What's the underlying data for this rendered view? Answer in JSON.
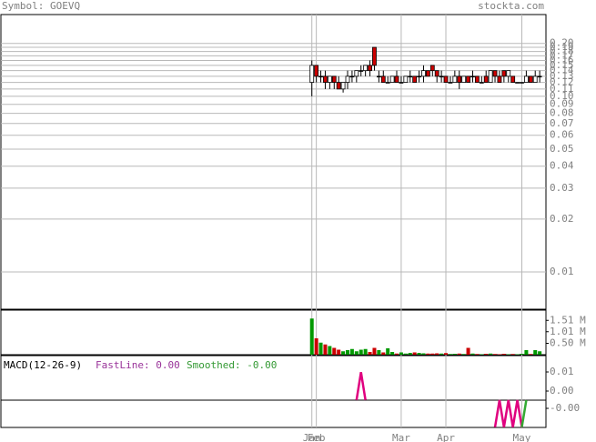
{
  "header": {
    "symbol": "Symbol: GOEVQ",
    "site": "stockta.com"
  },
  "chart_data": [
    {
      "type": "candlestick",
      "categories": [
        "Jan",
        "Feb",
        null,
        null,
        null,
        null,
        null,
        null,
        null,
        null,
        null,
        null,
        null,
        null,
        null,
        null,
        null,
        null,
        null,
        null,
        "Mar",
        null,
        null,
        null,
        null,
        null,
        null,
        null,
        null,
        null,
        "Apr",
        null,
        null,
        null,
        null,
        null,
        null,
        null,
        null,
        null,
        null,
        null,
        null,
        null,
        null,
        null,
        null,
        "May",
        null,
        null,
        null,
        null
      ],
      "xlim": [
        -69.6,
        52.4
      ],
      "open": [
        0.12,
        0.15,
        0.13,
        0.13,
        0.12,
        0.13,
        0.12,
        0.11,
        0.12,
        0.13,
        0.13,
        0.14,
        0.14,
        0.15,
        0.19,
        0.13,
        0.13,
        0.12,
        0.12,
        0.13,
        0.12,
        0.12,
        0.13,
        0.13,
        0.13,
        0.13,
        0.14,
        0.15,
        0.14,
        0.13,
        0.13,
        0.12,
        0.12,
        0.13,
        0.12,
        0.13,
        0.13,
        0.13,
        0.12,
        0.13,
        0.12,
        0.14,
        0.13,
        0.14,
        0.13,
        0.13,
        0.12,
        0.12,
        0.12,
        0.13,
        0.12,
        0.13
      ],
      "high": [
        0.16,
        0.15,
        0.14,
        0.14,
        0.13,
        0.13,
        0.13,
        0.12,
        0.14,
        0.14,
        0.14,
        0.15,
        0.15,
        0.16,
        0.19,
        0.14,
        0.14,
        0.13,
        0.13,
        0.14,
        0.13,
        0.13,
        0.14,
        0.13,
        0.14,
        0.15,
        0.14,
        0.15,
        0.14,
        0.14,
        0.13,
        0.13,
        0.14,
        0.14,
        0.13,
        0.13,
        0.14,
        0.13,
        0.13,
        0.14,
        0.14,
        0.14,
        0.14,
        0.14,
        0.14,
        0.13,
        0.12,
        0.12,
        0.14,
        0.13,
        0.14,
        0.14
      ],
      "low": [
        0.1,
        0.12,
        0.12,
        0.11,
        0.11,
        0.11,
        0.11,
        0.105,
        0.11,
        0.12,
        0.12,
        0.13,
        0.13,
        0.13,
        0.14,
        0.12,
        0.12,
        0.12,
        0.12,
        0.12,
        0.12,
        0.12,
        0.12,
        0.12,
        0.12,
        0.12,
        0.13,
        0.13,
        0.12,
        0.12,
        0.12,
        0.12,
        0.12,
        0.11,
        0.12,
        0.12,
        0.12,
        0.12,
        0.12,
        0.12,
        0.12,
        0.12,
        0.12,
        0.12,
        0.12,
        0.12,
        0.12,
        0.12,
        0.12,
        0.12,
        0.12,
        0.12
      ],
      "close": [
        0.15,
        0.13,
        0.13,
        0.12,
        0.13,
        0.12,
        0.11,
        0.12,
        0.13,
        0.13,
        0.14,
        0.14,
        0.15,
        0.14,
        0.15,
        0.13,
        0.12,
        0.12,
        0.13,
        0.12,
        0.12,
        0.13,
        0.13,
        0.12,
        0.13,
        0.14,
        0.13,
        0.14,
        0.13,
        0.13,
        0.12,
        0.12,
        0.13,
        0.12,
        0.13,
        0.12,
        0.13,
        0.12,
        0.12,
        0.12,
        0.14,
        0.13,
        0.12,
        0.13,
        0.14,
        0.12,
        0.12,
        0.12,
        0.13,
        0.12,
        0.13,
        0.13
      ],
      "up_color": "#ffffff",
      "down_color": "#cc0000",
      "log_scale": true,
      "grid": true,
      "ylim": [
        0.00613,
        0.292
      ],
      "yticks": [
        0.01,
        0.02,
        0.03,
        0.04,
        0.05,
        0.06,
        0.07,
        0.08,
        0.09,
        {
          "value": 0.1,
          "label": "0.10"
        },
        {
          "value": 0.11,
          "label": "0.11"
        },
        {
          "value": 0.12,
          "label": "0.12"
        },
        {
          "value": 0.13,
          "label": "0.13"
        },
        {
          "value": 0.14,
          "label": "0.14"
        },
        {
          "value": 0.15,
          "label": "0.15"
        },
        {
          "value": 0.16,
          "label": "0.16"
        },
        {
          "value": 0.17,
          "label": "0.17"
        },
        {
          "value": 0.18,
          "label": "0.18"
        },
        {
          "value": 0.19,
          "label": "0.19"
        },
        {
          "value": 0.2,
          "label": "0.20"
        }
      ]
    },
    {
      "type": "bar",
      "values": [
        1.59,
        0.72,
        0.53,
        0.45,
        0.38,
        0.3,
        0.22,
        0.15,
        0.2,
        0.25,
        0.15,
        0.22,
        0.25,
        0.12,
        0.3,
        0.2,
        0.1,
        0.28,
        0.12,
        0.05,
        0.1,
        0.05,
        0.08,
        0.1,
        0.08,
        0.06,
        0.05,
        0.05,
        0.06,
        0.05,
        0.07,
        0.03,
        0.04,
        0.05,
        0.03,
        0.3,
        0.05,
        0.03,
        0.02,
        0.04,
        0.05,
        0.03,
        0.02,
        0.04,
        0.02,
        0.03,
        0.02,
        0.04,
        0.2,
        0.03,
        0.2,
        0.15
      ],
      "up_color": "#009900",
      "down_color": "#cc0000",
      "ylim": [
        0,
        1.96
      ],
      "yticks": [
        {
          "value": 0.5,
          "label": "0.50 M"
        },
        {
          "value": 1.01,
          "label": "1.01 M"
        },
        {
          "value": 1.51,
          "label": "1.51 M"
        }
      ]
    },
    {
      "type": "line",
      "title": "MACD(12-26-9)",
      "fast_label": "FastLine: 0.00",
      "smoothed_label": "Smoothed: -0.00",
      "series": [
        {
          "color": "#e0007f",
          "values": [
            null,
            null,
            null,
            null,
            null,
            null,
            null,
            null,
            null,
            null,
            -0.0047,
            0.0099,
            -0.0047,
            null,
            null,
            null,
            null,
            null,
            null,
            null,
            null,
            null,
            null,
            null,
            null,
            null,
            null,
            null,
            null,
            null,
            null,
            null,
            null,
            null,
            null,
            null,
            null,
            null,
            null,
            null,
            null,
            null,
            null,
            null,
            null,
            null,
            null,
            null,
            null,
            null,
            null,
            null
          ]
        }
      ],
      "ylim": [
        -0.00476,
        0.01857
      ],
      "yticks": [
        0.01,
        {
          "value": 0,
          "label": "0.00"
        }
      ]
    },
    {
      "type": "line",
      "series": [
        {
          "color": "#e0007f",
          "values": [
            null,
            null,
            null,
            null,
            null,
            null,
            null,
            null,
            null,
            null,
            null,
            null,
            null,
            null,
            null,
            null,
            null,
            null,
            null,
            null,
            null,
            null,
            null,
            null,
            null,
            null,
            null,
            null,
            null,
            null,
            null,
            null,
            null,
            null,
            null,
            null,
            null,
            null,
            null,
            null,
            null,
            -0.0066,
            0,
            -0.0066,
            0,
            -0.0066,
            0,
            -0.0066,
            null,
            null,
            null,
            null
          ]
        },
        {
          "color": "#33aa33",
          "values": [
            null,
            null,
            null,
            null,
            null,
            null,
            null,
            null,
            null,
            null,
            null,
            null,
            null,
            null,
            null,
            null,
            null,
            null,
            null,
            null,
            null,
            null,
            null,
            null,
            null,
            null,
            null,
            null,
            null,
            null,
            null,
            null,
            null,
            null,
            null,
            null,
            null,
            null,
            null,
            null,
            null,
            null,
            null,
            null,
            null,
            null,
            null,
            -0.0066,
            0,
            null,
            null,
            null
          ]
        }
      ],
      "ylim": [
        -0.00667,
        0
      ],
      "yticks": [
        {
          "value": -0.002,
          "label": "-0.00"
        }
      ]
    }
  ]
}
